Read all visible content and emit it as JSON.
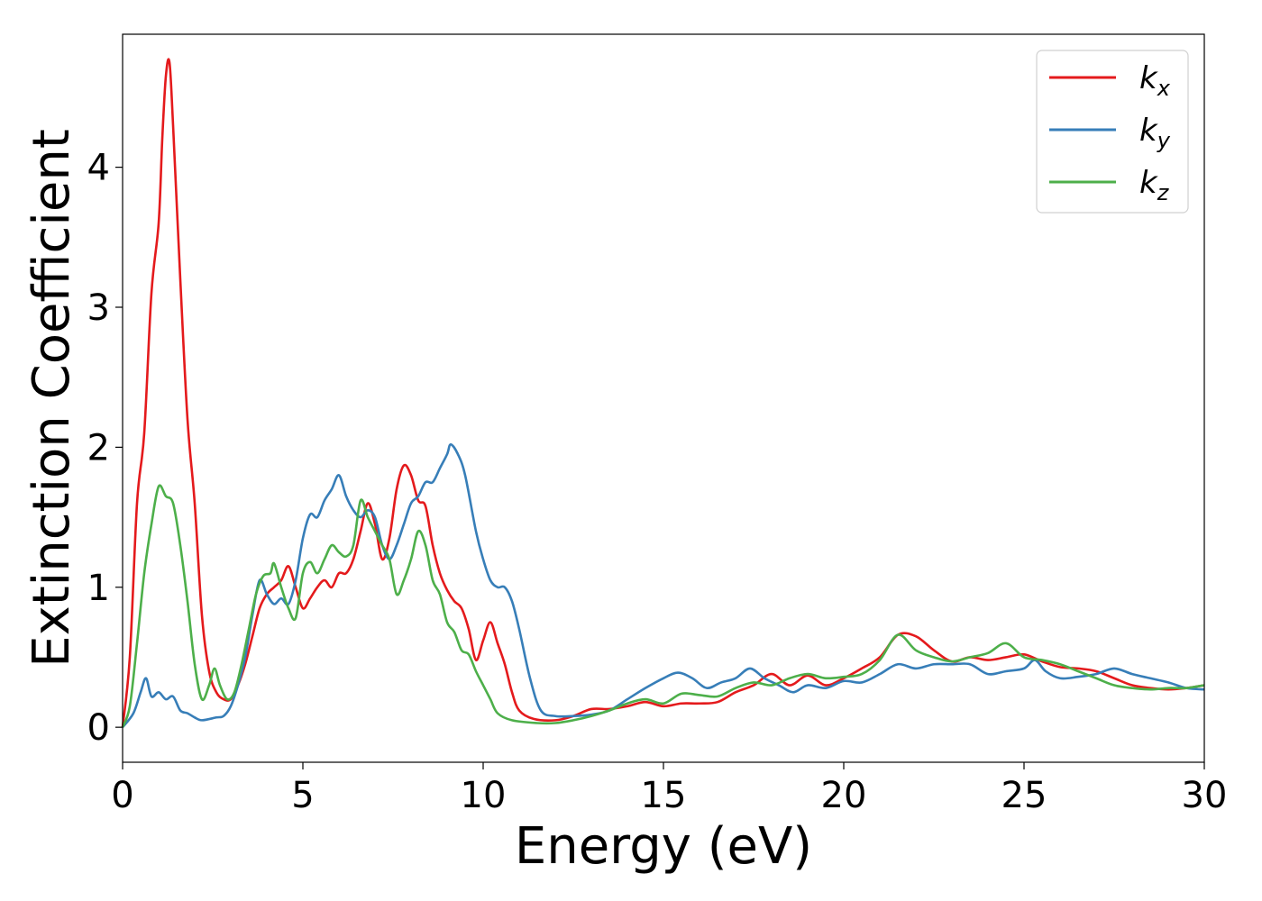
{
  "chart_data": {
    "type": "line",
    "title": "",
    "xlabel": "Energy (eV)",
    "ylabel": "Extinction Coefficient",
    "xlim": [
      0,
      30
    ],
    "ylim": [
      -0.25,
      4.95
    ],
    "xticks": [
      0,
      5,
      10,
      15,
      20,
      25,
      30
    ],
    "yticks": [
      0,
      1,
      2,
      3,
      4
    ],
    "grid": false,
    "legend_position": "top-right",
    "series": [
      {
        "name": "k",
        "subscript": "x",
        "color": "#e41a1c",
        "points": [
          [
            0,
            0
          ],
          [
            0.2,
            0.5
          ],
          [
            0.4,
            1.6
          ],
          [
            0.6,
            2.1
          ],
          [
            0.8,
            3.1
          ],
          [
            1.0,
            3.6
          ],
          [
            1.1,
            4.2
          ],
          [
            1.2,
            4.65
          ],
          [
            1.3,
            4.75
          ],
          [
            1.4,
            4.3
          ],
          [
            1.6,
            3.2
          ],
          [
            1.8,
            2.2
          ],
          [
            2.0,
            1.6
          ],
          [
            2.2,
            0.8
          ],
          [
            2.4,
            0.4
          ],
          [
            2.6,
            0.25
          ],
          [
            2.8,
            0.2
          ],
          [
            3.0,
            0.2
          ],
          [
            3.2,
            0.3
          ],
          [
            3.4,
            0.45
          ],
          [
            3.6,
            0.65
          ],
          [
            3.8,
            0.85
          ],
          [
            4.0,
            0.95
          ],
          [
            4.2,
            1.0
          ],
          [
            4.4,
            1.05
          ],
          [
            4.6,
            1.15
          ],
          [
            4.8,
            1.0
          ],
          [
            5.0,
            0.85
          ],
          [
            5.2,
            0.92
          ],
          [
            5.4,
            1.0
          ],
          [
            5.6,
            1.05
          ],
          [
            5.8,
            1.0
          ],
          [
            6.0,
            1.1
          ],
          [
            6.2,
            1.1
          ],
          [
            6.4,
            1.2
          ],
          [
            6.6,
            1.4
          ],
          [
            6.8,
            1.6
          ],
          [
            7.0,
            1.45
          ],
          [
            7.2,
            1.2
          ],
          [
            7.4,
            1.35
          ],
          [
            7.6,
            1.7
          ],
          [
            7.8,
            1.87
          ],
          [
            8.0,
            1.8
          ],
          [
            8.2,
            1.62
          ],
          [
            8.4,
            1.58
          ],
          [
            8.6,
            1.3
          ],
          [
            8.8,
            1.1
          ],
          [
            9.0,
            0.98
          ],
          [
            9.2,
            0.9
          ],
          [
            9.4,
            0.85
          ],
          [
            9.6,
            0.7
          ],
          [
            9.8,
            0.48
          ],
          [
            10.0,
            0.62
          ],
          [
            10.2,
            0.75
          ],
          [
            10.4,
            0.6
          ],
          [
            10.6,
            0.45
          ],
          [
            10.8,
            0.25
          ],
          [
            11.0,
            0.12
          ],
          [
            11.4,
            0.06
          ],
          [
            12.0,
            0.05
          ],
          [
            12.5,
            0.08
          ],
          [
            13.0,
            0.13
          ],
          [
            13.5,
            0.13
          ],
          [
            14.0,
            0.15
          ],
          [
            14.5,
            0.18
          ],
          [
            15.0,
            0.15
          ],
          [
            15.5,
            0.17
          ],
          [
            16.0,
            0.17
          ],
          [
            16.5,
            0.18
          ],
          [
            17.0,
            0.25
          ],
          [
            17.5,
            0.3
          ],
          [
            18.0,
            0.38
          ],
          [
            18.5,
            0.3
          ],
          [
            19.0,
            0.37
          ],
          [
            19.5,
            0.3
          ],
          [
            20.0,
            0.35
          ],
          [
            20.5,
            0.42
          ],
          [
            21.0,
            0.5
          ],
          [
            21.5,
            0.66
          ],
          [
            22.0,
            0.65
          ],
          [
            22.5,
            0.55
          ],
          [
            23.0,
            0.47
          ],
          [
            23.5,
            0.5
          ],
          [
            24.0,
            0.48
          ],
          [
            24.5,
            0.5
          ],
          [
            25.0,
            0.52
          ],
          [
            25.5,
            0.47
          ],
          [
            26.0,
            0.43
          ],
          [
            26.5,
            0.42
          ],
          [
            27.0,
            0.4
          ],
          [
            27.5,
            0.35
          ],
          [
            28.0,
            0.3
          ],
          [
            28.5,
            0.28
          ],
          [
            29.0,
            0.27
          ],
          [
            29.5,
            0.28
          ],
          [
            30.0,
            0.3
          ]
        ]
      },
      {
        "name": "k",
        "subscript": "y",
        "color": "#377eb8",
        "points": [
          [
            0,
            0
          ],
          [
            0.3,
            0.1
          ],
          [
            0.5,
            0.25
          ],
          [
            0.65,
            0.35
          ],
          [
            0.8,
            0.22
          ],
          [
            1.0,
            0.25
          ],
          [
            1.2,
            0.2
          ],
          [
            1.4,
            0.22
          ],
          [
            1.6,
            0.12
          ],
          [
            1.8,
            0.1
          ],
          [
            2.0,
            0.07
          ],
          [
            2.2,
            0.05
          ],
          [
            2.6,
            0.07
          ],
          [
            2.8,
            0.08
          ],
          [
            3.0,
            0.15
          ],
          [
            3.2,
            0.3
          ],
          [
            3.4,
            0.5
          ],
          [
            3.6,
            0.8
          ],
          [
            3.8,
            1.05
          ],
          [
            4.0,
            0.95
          ],
          [
            4.2,
            0.88
          ],
          [
            4.4,
            0.92
          ],
          [
            4.6,
            0.88
          ],
          [
            4.8,
            1.05
          ],
          [
            5.0,
            1.35
          ],
          [
            5.2,
            1.52
          ],
          [
            5.4,
            1.5
          ],
          [
            5.6,
            1.62
          ],
          [
            5.8,
            1.7
          ],
          [
            6.0,
            1.8
          ],
          [
            6.2,
            1.65
          ],
          [
            6.4,
            1.55
          ],
          [
            6.6,
            1.5
          ],
          [
            6.8,
            1.55
          ],
          [
            7.0,
            1.5
          ],
          [
            7.2,
            1.3
          ],
          [
            7.4,
            1.2
          ],
          [
            7.6,
            1.3
          ],
          [
            7.8,
            1.45
          ],
          [
            8.0,
            1.6
          ],
          [
            8.2,
            1.65
          ],
          [
            8.4,
            1.75
          ],
          [
            8.6,
            1.75
          ],
          [
            8.8,
            1.85
          ],
          [
            9.0,
            1.95
          ],
          [
            9.1,
            2.02
          ],
          [
            9.3,
            1.95
          ],
          [
            9.5,
            1.8
          ],
          [
            9.8,
            1.4
          ],
          [
            10.0,
            1.2
          ],
          [
            10.2,
            1.05
          ],
          [
            10.4,
            1.0
          ],
          [
            10.6,
            1.0
          ],
          [
            10.8,
            0.9
          ],
          [
            11.0,
            0.7
          ],
          [
            11.3,
            0.35
          ],
          [
            11.6,
            0.12
          ],
          [
            12.0,
            0.08
          ],
          [
            12.5,
            0.08
          ],
          [
            13.0,
            0.09
          ],
          [
            13.5,
            0.12
          ],
          [
            14.0,
            0.2
          ],
          [
            14.5,
            0.28
          ],
          [
            15.0,
            0.35
          ],
          [
            15.4,
            0.39
          ],
          [
            15.8,
            0.35
          ],
          [
            16.2,
            0.28
          ],
          [
            16.6,
            0.32
          ],
          [
            17.0,
            0.35
          ],
          [
            17.4,
            0.42
          ],
          [
            17.8,
            0.35
          ],
          [
            18.2,
            0.3
          ],
          [
            18.6,
            0.25
          ],
          [
            19.0,
            0.3
          ],
          [
            19.5,
            0.28
          ],
          [
            20.0,
            0.33
          ],
          [
            20.5,
            0.32
          ],
          [
            21.0,
            0.38
          ],
          [
            21.5,
            0.45
          ],
          [
            22.0,
            0.42
          ],
          [
            22.5,
            0.45
          ],
          [
            23.0,
            0.45
          ],
          [
            23.5,
            0.45
          ],
          [
            24.0,
            0.38
          ],
          [
            24.5,
            0.4
          ],
          [
            25.0,
            0.42
          ],
          [
            25.3,
            0.48
          ],
          [
            25.6,
            0.4
          ],
          [
            26.0,
            0.35
          ],
          [
            26.5,
            0.36
          ],
          [
            27.0,
            0.38
          ],
          [
            27.5,
            0.42
          ],
          [
            28.0,
            0.38
          ],
          [
            28.5,
            0.35
          ],
          [
            29.0,
            0.32
          ],
          [
            29.5,
            0.28
          ],
          [
            30.0,
            0.27
          ]
        ]
      },
      {
        "name": "k",
        "subscript": "z",
        "color": "#4daf4a",
        "points": [
          [
            0,
            0
          ],
          [
            0.2,
            0.15
          ],
          [
            0.4,
            0.6
          ],
          [
            0.6,
            1.1
          ],
          [
            0.8,
            1.45
          ],
          [
            1.0,
            1.72
          ],
          [
            1.2,
            1.65
          ],
          [
            1.4,
            1.6
          ],
          [
            1.6,
            1.3
          ],
          [
            1.8,
            0.9
          ],
          [
            2.0,
            0.45
          ],
          [
            2.2,
            0.2
          ],
          [
            2.4,
            0.3
          ],
          [
            2.55,
            0.42
          ],
          [
            2.7,
            0.3
          ],
          [
            2.9,
            0.2
          ],
          [
            3.1,
            0.25
          ],
          [
            3.3,
            0.45
          ],
          [
            3.5,
            0.7
          ],
          [
            3.7,
            0.95
          ],
          [
            3.9,
            1.08
          ],
          [
            4.1,
            1.1
          ],
          [
            4.2,
            1.17
          ],
          [
            4.4,
            1.0
          ],
          [
            4.6,
            0.85
          ],
          [
            4.8,
            0.78
          ],
          [
            5.0,
            1.1
          ],
          [
            5.2,
            1.18
          ],
          [
            5.4,
            1.1
          ],
          [
            5.6,
            1.2
          ],
          [
            5.8,
            1.3
          ],
          [
            6.0,
            1.25
          ],
          [
            6.2,
            1.22
          ],
          [
            6.4,
            1.3
          ],
          [
            6.6,
            1.62
          ],
          [
            6.8,
            1.5
          ],
          [
            7.0,
            1.4
          ],
          [
            7.2,
            1.3
          ],
          [
            7.4,
            1.2
          ],
          [
            7.6,
            0.95
          ],
          [
            7.8,
            1.05
          ],
          [
            8.0,
            1.2
          ],
          [
            8.2,
            1.4
          ],
          [
            8.4,
            1.3
          ],
          [
            8.6,
            1.05
          ],
          [
            8.8,
            0.95
          ],
          [
            9.0,
            0.75
          ],
          [
            9.2,
            0.68
          ],
          [
            9.4,
            0.55
          ],
          [
            9.6,
            0.52
          ],
          [
            9.8,
            0.4
          ],
          [
            10.0,
            0.3
          ],
          [
            10.2,
            0.2
          ],
          [
            10.4,
            0.1
          ],
          [
            10.8,
            0.05
          ],
          [
            11.5,
            0.03
          ],
          [
            12.0,
            0.03
          ],
          [
            12.5,
            0.05
          ],
          [
            13.0,
            0.08
          ],
          [
            13.5,
            0.12
          ],
          [
            14.0,
            0.17
          ],
          [
            14.5,
            0.2
          ],
          [
            15.0,
            0.17
          ],
          [
            15.5,
            0.24
          ],
          [
            16.0,
            0.23
          ],
          [
            16.5,
            0.22
          ],
          [
            17.0,
            0.28
          ],
          [
            17.5,
            0.32
          ],
          [
            18.0,
            0.3
          ],
          [
            18.5,
            0.35
          ],
          [
            19.0,
            0.38
          ],
          [
            19.5,
            0.35
          ],
          [
            20.0,
            0.36
          ],
          [
            20.5,
            0.38
          ],
          [
            21.0,
            0.48
          ],
          [
            21.5,
            0.66
          ],
          [
            22.0,
            0.55
          ],
          [
            22.5,
            0.5
          ],
          [
            23.0,
            0.47
          ],
          [
            23.5,
            0.5
          ],
          [
            24.0,
            0.53
          ],
          [
            24.5,
            0.6
          ],
          [
            25.0,
            0.5
          ],
          [
            25.5,
            0.48
          ],
          [
            26.0,
            0.45
          ],
          [
            26.5,
            0.4
          ],
          [
            27.0,
            0.35
          ],
          [
            27.5,
            0.3
          ],
          [
            28.0,
            0.28
          ],
          [
            28.5,
            0.27
          ],
          [
            29.0,
            0.28
          ],
          [
            29.5,
            0.28
          ],
          [
            30.0,
            0.3
          ]
        ]
      }
    ]
  }
}
